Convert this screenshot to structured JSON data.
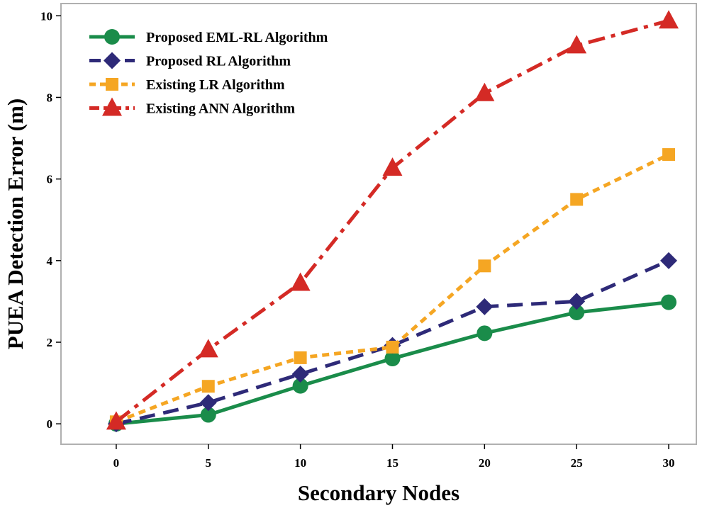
{
  "chart_data": {
    "type": "line",
    "title": "",
    "xlabel": "Secondary Nodes",
    "ylabel": "PUEA Detection Error (m)",
    "x": [
      0,
      5,
      10,
      15,
      20,
      25,
      30
    ],
    "xlim": [
      -3,
      31.5
    ],
    "ylim": [
      -0.5,
      10.3
    ],
    "xticks": [
      0,
      5,
      10,
      15,
      20,
      25,
      30
    ],
    "yticks": [
      0,
      2,
      4,
      6,
      8,
      10
    ],
    "grid": false,
    "legend_position": "top-left",
    "series": [
      {
        "name": "Proposed EML-RL Algorithm",
        "values": [
          0,
          0.22,
          0.93,
          1.6,
          2.22,
          2.73,
          2.98
        ],
        "color": "#1a8c4a",
        "dash": "solid",
        "marker": "circle"
      },
      {
        "name": "Proposed RL Algorithm",
        "values": [
          0,
          0.52,
          1.22,
          1.92,
          2.87,
          3.0,
          4.0
        ],
        "color": "#2e2a78",
        "dash": "dashed",
        "marker": "diamond"
      },
      {
        "name": "Existing LR Algorithm",
        "values": [
          0.05,
          0.92,
          1.62,
          1.88,
          3.87,
          5.5,
          6.6
        ],
        "color": "#f5a623",
        "dash": "dotted",
        "marker": "square"
      },
      {
        "name": "Existing ANN Algorithm",
        "values": [
          0.05,
          1.82,
          3.45,
          6.27,
          8.1,
          9.27,
          9.88
        ],
        "color": "#d42a25",
        "dash": "dashdot",
        "marker": "triangle"
      }
    ]
  }
}
